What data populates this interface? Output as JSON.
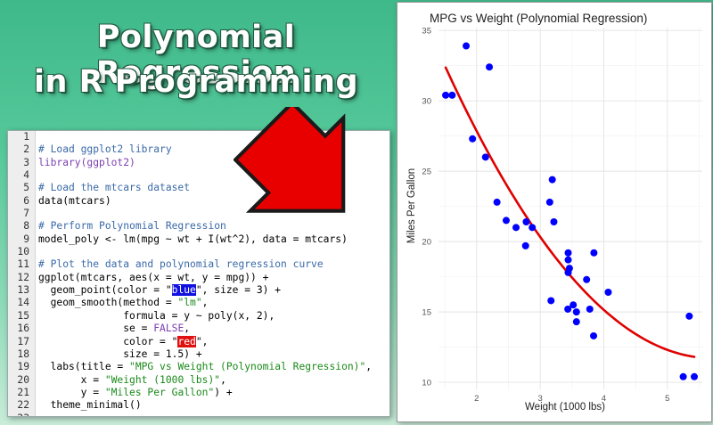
{
  "headline": {
    "line1": "Polynomial Regression",
    "line2": "in R Programming"
  },
  "code_lines": [
    {
      "n": "1",
      "parts": []
    },
    {
      "n": "2",
      "parts": [
        {
          "t": "# Load ggplot2 library",
          "c": "cmt"
        }
      ]
    },
    {
      "n": "3",
      "parts": [
        {
          "t": "library(ggplot2)",
          "c": "kw"
        }
      ]
    },
    {
      "n": "4",
      "parts": []
    },
    {
      "n": "5",
      "parts": [
        {
          "t": "# Load the mtcars dataset",
          "c": "cmt"
        }
      ]
    },
    {
      "n": "6",
      "parts": [
        {
          "t": "data(mtcars)",
          "c": ""
        }
      ]
    },
    {
      "n": "7",
      "parts": []
    },
    {
      "n": "8",
      "parts": [
        {
          "t": "# Perform Polynomial Regression",
          "c": "cmt"
        }
      ]
    },
    {
      "n": "9",
      "parts": [
        {
          "t": "model_poly <- lm(mpg ~ wt + I(wt^2), data = mtcars)",
          "c": ""
        }
      ]
    },
    {
      "n": "10",
      "parts": []
    },
    {
      "n": "11",
      "parts": [
        {
          "t": "# Plot the data and polynomial regression curve",
          "c": "cmt"
        }
      ]
    },
    {
      "n": "12",
      "parts": [
        {
          "t": "ggplot(mtcars, aes(x = wt, y = mpg)) +",
          "c": ""
        }
      ]
    },
    {
      "n": "13",
      "parts": [
        {
          "t": "  geom_point(color = \"",
          "c": ""
        },
        {
          "t": "blue",
          "c": "hl-blue"
        },
        {
          "t": "\", size = 3) +",
          "c": ""
        }
      ]
    },
    {
      "n": "14",
      "parts": [
        {
          "t": "  geom_smooth(method = ",
          "c": ""
        },
        {
          "t": "\"lm\"",
          "c": "str"
        },
        {
          "t": ",",
          "c": ""
        }
      ]
    },
    {
      "n": "15",
      "parts": [
        {
          "t": "              formula = y ~ poly(x, 2),",
          "c": ""
        }
      ]
    },
    {
      "n": "16",
      "parts": [
        {
          "t": "              se = ",
          "c": ""
        },
        {
          "t": "FALSE",
          "c": "kw"
        },
        {
          "t": ",",
          "c": ""
        }
      ]
    },
    {
      "n": "17",
      "parts": [
        {
          "t": "              color = \"",
          "c": ""
        },
        {
          "t": "red",
          "c": "hl-red"
        },
        {
          "t": "\",",
          "c": ""
        }
      ]
    },
    {
      "n": "18",
      "parts": [
        {
          "t": "              size = 1.5) +",
          "c": ""
        }
      ]
    },
    {
      "n": "19",
      "parts": [
        {
          "t": "  labs(title = ",
          "c": ""
        },
        {
          "t": "\"MPG vs Weight (Polynomial Regression)\"",
          "c": "str"
        },
        {
          "t": ",",
          "c": ""
        }
      ]
    },
    {
      "n": "20",
      "parts": [
        {
          "t": "       x = ",
          "c": ""
        },
        {
          "t": "\"Weight (1000 lbs)\"",
          "c": "str"
        },
        {
          "t": ",",
          "c": ""
        }
      ]
    },
    {
      "n": "21",
      "parts": [
        {
          "t": "       y = ",
          "c": ""
        },
        {
          "t": "\"Miles Per Gallon\"",
          "c": "str"
        },
        {
          "t": ") +",
          "c": ""
        }
      ]
    },
    {
      "n": "22",
      "parts": [
        {
          "t": "  theme_minimal()",
          "c": ""
        }
      ]
    },
    {
      "n": "23",
      "parts": []
    }
  ],
  "chart_data": {
    "type": "scatter",
    "title": "MPG vs Weight (Polynomial Regression)",
    "xlabel": "Weight (1000 lbs)",
    "ylabel": "Miles Per Gallon",
    "xlim": [
      1.4,
      5.55
    ],
    "ylim": [
      9.5,
      35.2
    ],
    "xticks": [
      2,
      3,
      4,
      5
    ],
    "yticks": [
      10,
      15,
      20,
      25,
      30,
      35
    ],
    "grid": true,
    "point_color": "#0000ff",
    "curve_color": "#e00000",
    "points": [
      {
        "x": 2.62,
        "y": 21.0
      },
      {
        "x": 2.875,
        "y": 21.0
      },
      {
        "x": 2.32,
        "y": 22.8
      },
      {
        "x": 3.215,
        "y": 21.4
      },
      {
        "x": 3.44,
        "y": 18.7
      },
      {
        "x": 3.46,
        "y": 18.1
      },
      {
        "x": 3.57,
        "y": 14.3
      },
      {
        "x": 3.19,
        "y": 24.4
      },
      {
        "x": 3.15,
        "y": 22.8
      },
      {
        "x": 3.44,
        "y": 19.2
      },
      {
        "x": 3.44,
        "y": 17.8
      },
      {
        "x": 4.07,
        "y": 16.4
      },
      {
        "x": 3.73,
        "y": 17.3
      },
      {
        "x": 3.78,
        "y": 15.2
      },
      {
        "x": 5.25,
        "y": 10.4
      },
      {
        "x": 5.424,
        "y": 10.4
      },
      {
        "x": 5.345,
        "y": 14.7
      },
      {
        "x": 2.2,
        "y": 32.4
      },
      {
        "x": 1.615,
        "y": 30.4
      },
      {
        "x": 1.835,
        "y": 33.9
      },
      {
        "x": 2.465,
        "y": 21.5
      },
      {
        "x": 3.52,
        "y": 15.5
      },
      {
        "x": 3.435,
        "y": 15.2
      },
      {
        "x": 3.84,
        "y": 13.3
      },
      {
        "x": 3.845,
        "y": 19.2
      },
      {
        "x": 1.935,
        "y": 27.3
      },
      {
        "x": 2.14,
        "y": 26.0
      },
      {
        "x": 1.513,
        "y": 30.4
      },
      {
        "x": 3.17,
        "y": 15.8
      },
      {
        "x": 2.77,
        "y": 19.7
      },
      {
        "x": 3.57,
        "y": 15.0
      },
      {
        "x": 2.78,
        "y": 21.4
      }
    ],
    "curve": {
      "a": 49.9308,
      "b": -13.3803,
      "c": 1.1711,
      "x_from": 1.513,
      "x_to": 5.424
    }
  }
}
